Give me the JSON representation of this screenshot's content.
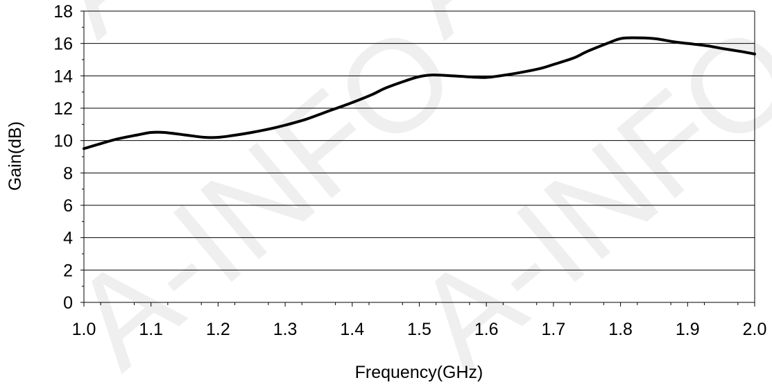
{
  "watermark": {
    "text": "A-INFO"
  },
  "chart_data": {
    "type": "line",
    "title": "",
    "xlabel": "Frequency(GHz)",
    "ylabel": "Gain(dB)",
    "xlim": [
      1.0,
      2.0
    ],
    "ylim": [
      0,
      18
    ],
    "x_ticks": [
      "1.0",
      "1.1",
      "1.2",
      "1.3",
      "1.4",
      "1.5",
      "1.6",
      "1.7",
      "1.8",
      "1.9",
      "2.0"
    ],
    "y_ticks": [
      "0",
      "2",
      "4",
      "6",
      "8",
      "10",
      "12",
      "14",
      "16",
      "18"
    ],
    "grid": "horizontal",
    "legend": "none",
    "line_color": "#000000",
    "series": [
      {
        "x": [
          1.0,
          1.02,
          1.05,
          1.08,
          1.1,
          1.12,
          1.15,
          1.18,
          1.2,
          1.22,
          1.25,
          1.28,
          1.3,
          1.33,
          1.36,
          1.4,
          1.43,
          1.45,
          1.48,
          1.5,
          1.52,
          1.55,
          1.58,
          1.6,
          1.62,
          1.65,
          1.68,
          1.7,
          1.73,
          1.75,
          1.78,
          1.8,
          1.82,
          1.85,
          1.88,
          1.9,
          1.93,
          1.95,
          1.98,
          2.0
        ],
        "values": [
          9.5,
          9.75,
          10.1,
          10.35,
          10.5,
          10.5,
          10.35,
          10.2,
          10.2,
          10.3,
          10.5,
          10.75,
          10.95,
          11.3,
          11.75,
          12.35,
          12.85,
          13.25,
          13.7,
          13.95,
          14.05,
          14.0,
          13.92,
          13.9,
          14.0,
          14.2,
          14.45,
          14.7,
          15.1,
          15.5,
          16.0,
          16.3,
          16.35,
          16.3,
          16.1,
          16.0,
          15.85,
          15.7,
          15.5,
          15.35
        ]
      }
    ]
  }
}
